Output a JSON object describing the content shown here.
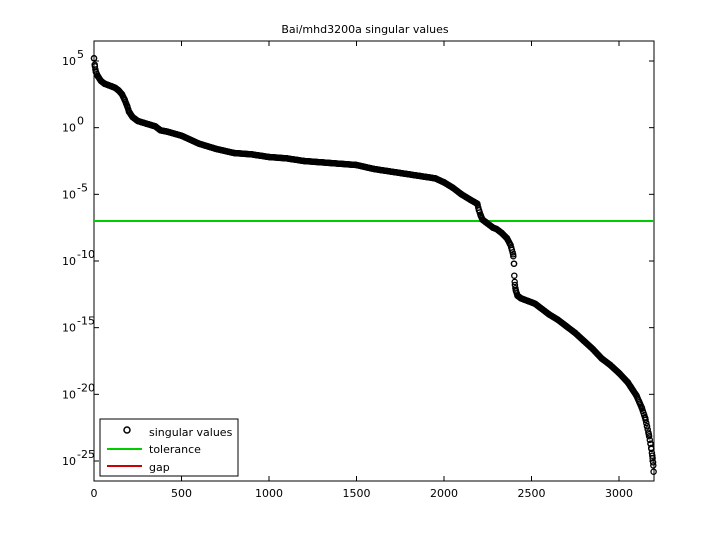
{
  "chart_data": {
    "type": "scatter",
    "title": "Bai/mhd3200a singular values",
    "xlabel": "",
    "ylabel": "",
    "xlim": [
      0,
      3200
    ],
    "ylim_log10": [
      -26.5,
      6.5
    ],
    "yscale": "log",
    "grid": false,
    "legend_position": "bottom-left",
    "x_ticks": [
      0,
      500,
      1000,
      1500,
      2000,
      2500,
      3000
    ],
    "x_tick_labels": [
      "0",
      "500",
      "1000",
      "1500",
      "2000",
      "2500",
      "3000"
    ],
    "y_ticks_log10": [
      5,
      0,
      -5,
      -10,
      -15,
      -20,
      -25
    ],
    "y_tick_labels": [
      {
        "base": "10",
        "exp": "5"
      },
      {
        "base": "10",
        "exp": "0"
      },
      {
        "base": "10",
        "exp": "-5"
      },
      {
        "base": "10",
        "exp": "-10"
      },
      {
        "base": "10",
        "exp": "-15"
      },
      {
        "base": "10",
        "exp": "-20"
      },
      {
        "base": "10",
        "exp": "-25"
      }
    ],
    "series": [
      {
        "name": "singular values",
        "marker": "circle",
        "color": "#000000",
        "points_log10": [
          [
            0,
            5.2
          ],
          [
            5,
            4.6
          ],
          [
            10,
            4.2
          ],
          [
            20,
            3.9
          ],
          [
            40,
            3.5
          ],
          [
            60,
            3.3
          ],
          [
            80,
            3.2
          ],
          [
            100,
            3.1
          ],
          [
            120,
            3.0
          ],
          [
            140,
            2.8
          ],
          [
            160,
            2.5
          ],
          [
            175,
            2.1
          ],
          [
            190,
            1.6
          ],
          [
            200,
            1.2
          ],
          [
            220,
            0.8
          ],
          [
            250,
            0.5
          ],
          [
            300,
            0.3
          ],
          [
            350,
            0.1
          ],
          [
            380,
            -0.2
          ],
          [
            420,
            -0.3
          ],
          [
            500,
            -0.6
          ],
          [
            600,
            -1.2
          ],
          [
            700,
            -1.6
          ],
          [
            800,
            -1.9
          ],
          [
            900,
            -2.0
          ],
          [
            1000,
            -2.2
          ],
          [
            1100,
            -2.3
          ],
          [
            1200,
            -2.5
          ],
          [
            1300,
            -2.6
          ],
          [
            1400,
            -2.7
          ],
          [
            1500,
            -2.8
          ],
          [
            1600,
            -3.1
          ],
          [
            1700,
            -3.3
          ],
          [
            1800,
            -3.5
          ],
          [
            1900,
            -3.7
          ],
          [
            1950,
            -3.8
          ],
          [
            2000,
            -4.1
          ],
          [
            2050,
            -4.5
          ],
          [
            2100,
            -5.0
          ],
          [
            2150,
            -5.4
          ],
          [
            2190,
            -5.7
          ],
          [
            2200,
            -6.2
          ],
          [
            2210,
            -6.6
          ],
          [
            2220,
            -6.9
          ],
          [
            2240,
            -7.1
          ],
          [
            2260,
            -7.3
          ],
          [
            2280,
            -7.5
          ],
          [
            2300,
            -7.6
          ],
          [
            2330,
            -7.9
          ],
          [
            2360,
            -8.3
          ],
          [
            2380,
            -8.8
          ],
          [
            2395,
            -9.5
          ],
          [
            2400,
            -10.2
          ],
          [
            2402,
            -11.1
          ],
          [
            2405,
            -11.8
          ],
          [
            2410,
            -12.2
          ],
          [
            2420,
            -12.6
          ],
          [
            2440,
            -12.8
          ],
          [
            2480,
            -13.0
          ],
          [
            2520,
            -13.2
          ],
          [
            2560,
            -13.6
          ],
          [
            2600,
            -14.0
          ],
          [
            2650,
            -14.4
          ],
          [
            2700,
            -14.9
          ],
          [
            2750,
            -15.4
          ],
          [
            2800,
            -16.0
          ],
          [
            2850,
            -16.6
          ],
          [
            2900,
            -17.3
          ],
          [
            2950,
            -17.8
          ],
          [
            3000,
            -18.4
          ],
          [
            3050,
            -19.1
          ],
          [
            3100,
            -20.1
          ],
          [
            3130,
            -21.0
          ],
          [
            3150,
            -21.8
          ],
          [
            3160,
            -22.4
          ],
          [
            3170,
            -23.0
          ],
          [
            3180,
            -23.7
          ],
          [
            3185,
            -24.1
          ],
          [
            3190,
            -24.6
          ],
          [
            3195,
            -25.1
          ],
          [
            3198,
            -25.8
          ]
        ]
      },
      {
        "name": "tolerance",
        "marker": "line",
        "color": "#00cc00",
        "value_log10": -7.0
      },
      {
        "name": "gap",
        "marker": "line",
        "color": "#cc0000",
        "value_log10": null
      }
    ]
  }
}
